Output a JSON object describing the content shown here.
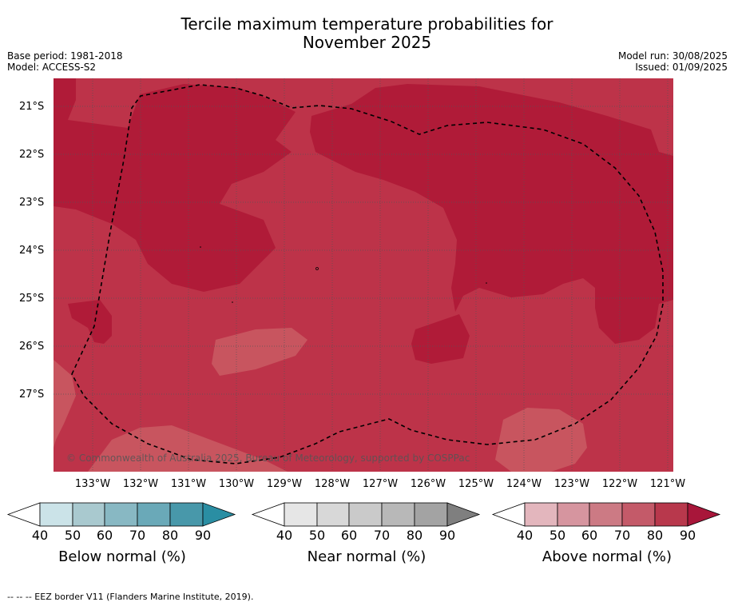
{
  "title_line1": "Tercile maximum temperature probabilities for",
  "title_line2": "November 2025",
  "base_period": "Base period: 1981-2018",
  "model": "Model: ACCESS-S2",
  "model_run": "Model run: 30/08/2025",
  "issued": "Issued: 01/09/2025",
  "copyright": "© Commonwealth of Australia 2025, Bureau of Meteorology, supported by COSPPac",
  "footnote": "--  --  -- EEZ border V11 (Flanders Marine Institute, 2019).",
  "map": {
    "lat_labels": [
      "21°S",
      "22°S",
      "23°S",
      "24°S",
      "25°S",
      "26°S",
      "27°S"
    ],
    "lon_labels": [
      "133°W",
      "132°W",
      "131°W",
      "130°W",
      "129°W",
      "128°W",
      "127°W",
      "126°W",
      "125°W",
      "124°W",
      "123°W",
      "122°W",
      "121°W"
    ],
    "colors": {
      "band_70_80": "#bd3349",
      "band_80_90": "#b01b38",
      "band_60_70": "#c8555f",
      "grid": "#555555",
      "eez_border": "#000000"
    }
  },
  "colorbars": [
    {
      "label": "Below normal (%)",
      "ticks": [
        "40",
        "50",
        "60",
        "70",
        "80",
        "90"
      ],
      "colors": [
        "#cbe3e8",
        "#a9c9cf",
        "#88b8c3",
        "#6aa9b8",
        "#4898aa",
        "#2a8ea3"
      ]
    },
    {
      "label": "Near normal (%)",
      "ticks": [
        "40",
        "50",
        "60",
        "70",
        "80",
        "90"
      ],
      "colors": [
        "#e6e6e6",
        "#d8d8d8",
        "#cacaca",
        "#b8b8b8",
        "#a3a3a3",
        "#7f7f7f"
      ]
    },
    {
      "label": "Above normal (%)",
      "ticks": [
        "40",
        "50",
        "60",
        "70",
        "80",
        "90"
      ],
      "colors": [
        "#e3b6bd",
        "#d6959f",
        "#cc7a84",
        "#c45a69",
        "#b8384c",
        "#a8163a"
      ]
    }
  ]
}
